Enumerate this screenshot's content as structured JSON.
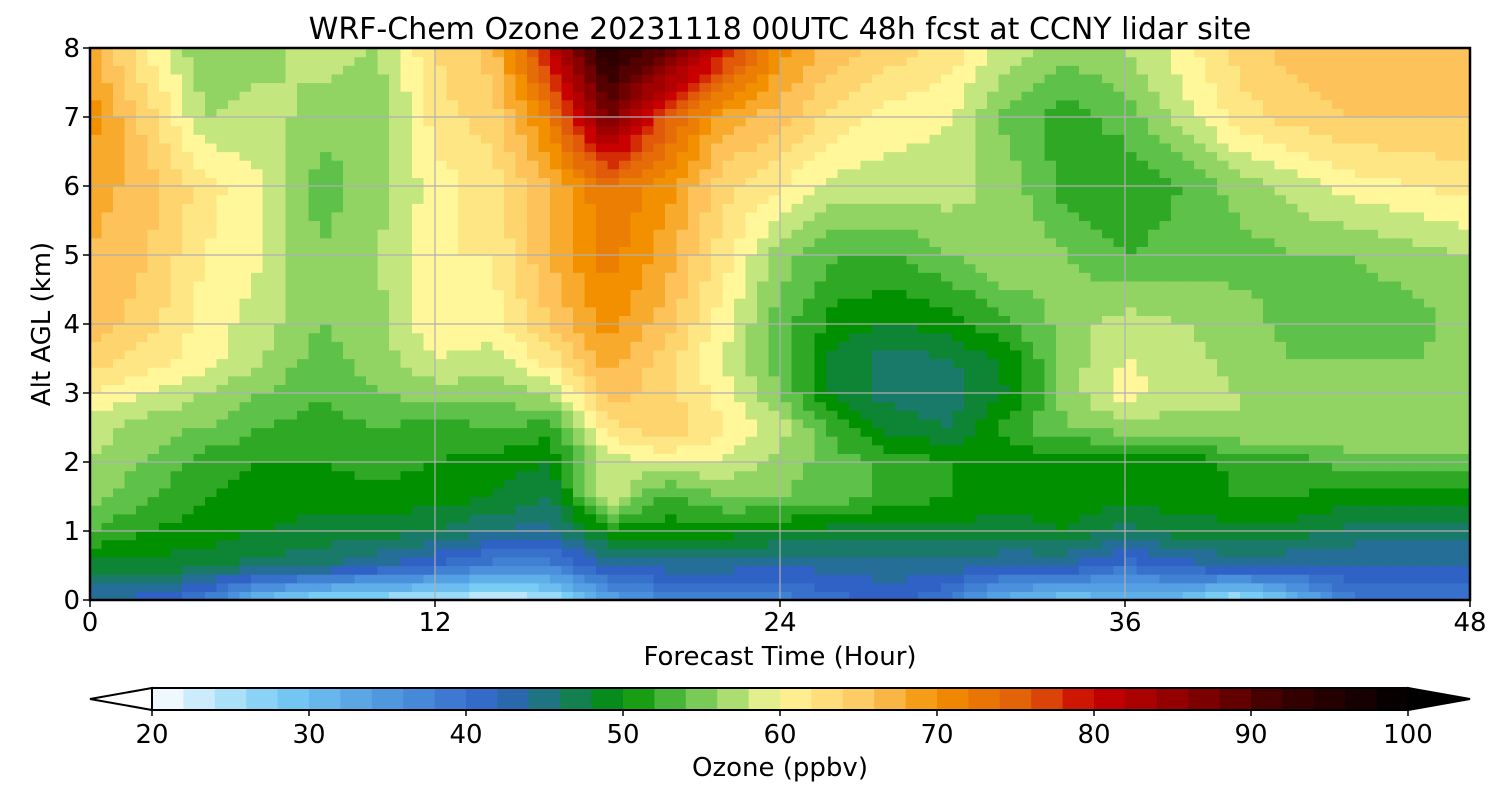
{
  "chart_data": {
    "type": "heatmap",
    "subtype": "filled-contour",
    "title": "WRF-Chem Ozone  20231118 00UTC 48h fcst at CCNY lidar site",
    "xlabel": "Forecast Time (Hour)",
    "ylabel": "Alt AGL (km)",
    "xlim": [
      0,
      48
    ],
    "ylim": [
      0,
      8
    ],
    "xticks": [
      0,
      12,
      24,
      36,
      48
    ],
    "yticks": [
      0,
      1,
      2,
      3,
      4,
      5,
      6,
      7,
      8
    ],
    "grid": true,
    "colorbar": {
      "label": "Ozone  (ppbv)",
      "range": [
        20,
        100
      ],
      "ticks": [
        20,
        30,
        40,
        50,
        60,
        70,
        80,
        90,
        100
      ],
      "extend": "both",
      "orientation": "horizontal",
      "colormap": [
        [
          20,
          "#ffffff"
        ],
        [
          28,
          "#79cdf5"
        ],
        [
          35,
          "#4f98e0"
        ],
        [
          42,
          "#2f62c4"
        ],
        [
          46,
          "#1a7a6a"
        ],
        [
          50,
          "#009000"
        ],
        [
          54,
          "#5ec24a"
        ],
        [
          58,
          "#c4e67e"
        ],
        [
          60,
          "#fff799"
        ],
        [
          66,
          "#fdc35a"
        ],
        [
          70,
          "#f29000"
        ],
        [
          76,
          "#e05a0a"
        ],
        [
          80,
          "#c80000"
        ],
        [
          86,
          "#8a0000"
        ],
        [
          92,
          "#3a0000"
        ],
        [
          100,
          "#000000"
        ]
      ]
    },
    "x_hours": [
      0,
      2,
      4,
      6,
      8,
      10,
      12,
      14,
      16,
      18,
      20,
      22,
      24,
      26,
      28,
      30,
      32,
      34,
      36,
      38,
      40,
      42,
      44,
      46,
      48
    ],
    "z_km": [
      0,
      0.5,
      1,
      1.5,
      2,
      2.5,
      3,
      3.5,
      4,
      5,
      6,
      7,
      8
    ],
    "ozone_ppbv": [
      [
        43,
        42,
        38,
        30,
        26,
        25,
        24,
        22,
        24,
        33,
        37,
        38,
        38,
        40,
        42,
        38,
        31,
        29,
        30,
        30,
        24,
        31,
        39,
        39,
        39
      ],
      [
        48,
        48,
        48,
        46,
        46,
        43,
        41,
        38,
        38,
        43,
        44,
        44,
        43,
        44,
        44,
        44,
        43,
        43,
        40,
        42,
        44,
        43,
        43,
        43,
        43
      ],
      [
        53,
        51,
        50,
        49,
        48,
        48,
        47,
        45,
        44,
        50,
        50,
        50,
        49,
        48,
        48,
        48,
        48,
        49,
        46,
        48,
        48,
        48,
        46,
        46,
        46
      ],
      [
        56,
        53,
        51,
        50,
        50,
        50,
        50,
        49,
        47,
        59,
        52,
        55,
        55,
        54,
        52,
        51,
        50,
        50,
        50,
        50,
        51,
        51,
        50,
        50,
        50
      ],
      [
        57,
        55,
        52,
        51,
        51,
        52,
        51,
        50,
        49,
        58,
        59,
        59,
        56,
        54,
        52,
        51,
        50,
        49,
        49,
        49,
        52,
        52,
        54,
        54,
        54
      ],
      [
        58,
        56,
        55,
        53,
        52,
        53,
        52,
        53,
        52,
        62,
        65,
        61,
        58,
        52,
        48,
        47,
        52,
        55,
        56,
        56,
        57,
        57,
        57,
        57,
        57
      ],
      [
        61,
        59,
        57,
        55,
        53,
        55,
        56,
        56,
        57,
        66,
        64,
        60,
        55,
        48,
        46,
        46,
        49,
        56,
        60,
        58,
        57,
        56,
        56,
        56,
        57
      ],
      [
        64,
        62,
        60,
        57,
        54,
        56,
        59,
        58,
        62,
        68,
        64,
        59,
        54,
        48,
        46,
        47,
        50,
        56,
        59,
        58,
        56,
        55,
        55,
        55,
        56
      ],
      [
        66,
        64,
        60,
        58,
        55,
        56,
        61,
        60,
        65,
        70,
        66,
        60,
        54,
        50,
        49,
        50,
        53,
        56,
        58,
        57,
        56,
        54,
        54,
        54,
        56
      ],
      [
        67,
        65,
        61,
        59,
        55,
        57,
        61,
        61,
        67,
        72,
        68,
        62,
        56,
        53,
        53,
        55,
        57,
        55,
        53,
        54,
        54,
        55,
        55,
        56,
        57
      ],
      [
        68,
        66,
        62,
        59,
        54,
        56,
        60,
        62,
        67,
        73,
        70,
        64,
        61,
        58,
        58,
        58,
        56,
        52,
        51,
        53,
        56,
        58,
        60,
        61,
        62
      ],
      [
        70,
        64,
        57,
        58,
        56,
        55,
        62,
        64,
        72,
        88,
        76,
        68,
        66,
        62,
        60,
        59,
        54,
        52,
        54,
        58,
        62,
        64,
        65,
        65,
        65
      ],
      [
        68,
        61,
        55,
        56,
        58,
        57,
        63,
        66,
        80,
        95,
        90,
        80,
        70,
        66,
        64,
        62,
        58,
        56,
        57,
        60,
        64,
        66,
        67,
        67,
        67
      ]
    ]
  }
}
